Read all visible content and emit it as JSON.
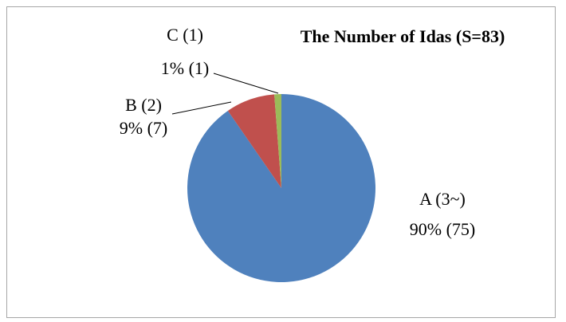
{
  "chart_data": {
    "type": "pie",
    "title": "The Number of Idas (S=83)",
    "categories": [
      "A (3~)",
      "B (2)",
      "C (1)"
    ],
    "values": [
      75,
      7,
      1
    ],
    "value_labels": [
      "90% (75)",
      "9% (7)",
      "1% (1)"
    ],
    "colors": [
      "#4f81bd",
      "#c0504d",
      "#9bbb59"
    ]
  }
}
